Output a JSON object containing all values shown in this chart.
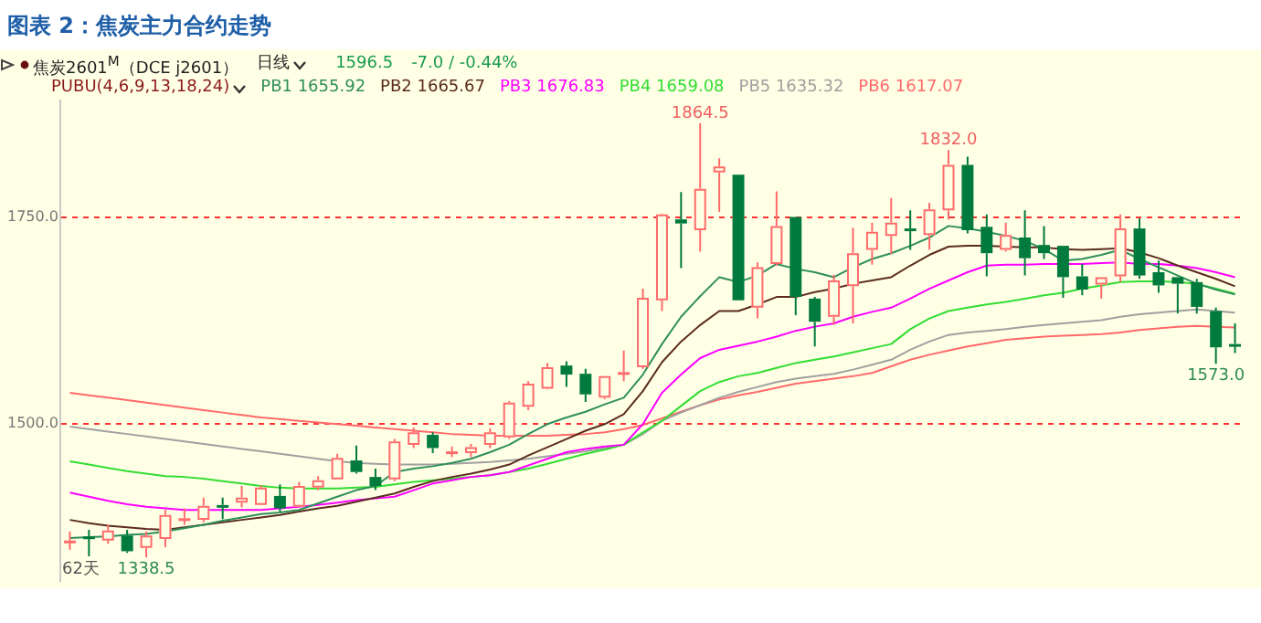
{
  "chart_data": {
    "type": "candlestick",
    "title": "图表 2：焦炭主力合约走势",
    "annotations": [
      "焦炭2601$^{M}$（DCE j2601）",
      "日线",
      "1596.5",
      "-7.0 / -0.44%",
      "PUBU(4,6,9,13,18,24)",
      "62天",
      {
        "text": "1864.5",
        "y": 1864.5
      },
      {
        "text": "1832.0",
        "y": 1832.0
      },
      {
        "text": "1573.0",
        "y": 1573.0
      },
      {
        "text": "1338.5",
        "y": 1338.5
      }
    ],
    "categories": [
      null,
      null,
      null,
      null,
      null,
      null,
      null,
      null,
      null,
      null,
      null,
      null,
      null,
      null,
      null,
      null,
      null,
      null,
      null,
      null,
      null,
      null,
      null,
      null,
      null,
      null,
      null,
      null,
      null,
      null,
      null,
      null,
      null,
      null,
      null,
      null,
      null,
      null,
      null,
      null,
      null,
      null,
      null,
      null,
      null,
      null,
      null,
      null,
      null,
      null,
      null,
      null,
      null,
      null,
      null,
      null,
      null,
      null,
      null,
      null,
      null,
      null
    ],
    "ohlc": [
      [
        1358,
        1370,
        1348,
        1359
      ],
      [
        1364,
        1372,
        1340,
        1363
      ],
      [
        1359,
        1378,
        1355,
        1371
      ],
      [
        1365,
        1372,
        1344,
        1346
      ],
      [
        1350,
        1370,
        1338.5,
        1365
      ],
      [
        1361,
        1396,
        1351,
        1390
      ],
      [
        1385,
        1398,
        1378,
        1386
      ],
      [
        1384,
        1411,
        1381,
        1401
      ],
      [
        1402,
        1411,
        1385,
        1401
      ],
      [
        1405,
        1425,
        1399,
        1411
      ],
      [
        1402,
        1426,
        1402,
        1423
      ],
      [
        1413,
        1427,
        1394,
        1398
      ],
      [
        1400,
        1430,
        1400,
        1425
      ],
      [
        1423,
        1437,
        1420,
        1432
      ],
      [
        1433,
        1464,
        1433,
        1459
      ],
      [
        1456,
        1474,
        1440,
        1442
      ],
      [
        1436,
        1446,
        1420,
        1425
      ],
      [
        1433,
        1482,
        1431,
        1479
      ],
      [
        1475,
        1496,
        1471,
        1490
      ],
      [
        1487,
        1490,
        1465,
        1471
      ],
      [
        1466,
        1473,
        1460,
        1467
      ],
      [
        1465,
        1476,
        1460,
        1472
      ],
      [
        1475,
        1495,
        1471,
        1490
      ],
      [
        1484,
        1528,
        1482,
        1526
      ],
      [
        1521,
        1552,
        1517,
        1549
      ],
      [
        1543,
        1574,
        1542,
        1569
      ],
      [
        1571,
        1576,
        1545,
        1560
      ],
      [
        1561,
        1567,
        1527,
        1536
      ],
      [
        1532,
        1558,
        1530,
        1558
      ],
      [
        1562,
        1589,
        1552,
        1563
      ],
      [
        1569,
        1664,
        1567,
        1653
      ],
      [
        1650,
        1755,
        1637,
        1754
      ],
      [
        1748,
        1781,
        1689,
        1743
      ],
      [
        1735,
        1864.5,
        1709,
        1785
      ],
      [
        1805,
        1822,
        1757,
        1812
      ],
      [
        1802,
        1802,
        1650,
        1650
      ],
      [
        1641,
        1696,
        1628,
        1690
      ],
      [
        1694,
        1782,
        1692,
        1740
      ],
      [
        1751,
        1751,
        1632,
        1654
      ],
      [
        1652,
        1654,
        1594,
        1624
      ],
      [
        1630,
        1681,
        1620,
        1674
      ],
      [
        1667,
        1738,
        1622,
        1707
      ],
      [
        1711,
        1744,
        1693,
        1733
      ],
      [
        1728,
        1774,
        1706,
        1744
      ],
      [
        1737,
        1759,
        1711,
        1736
      ],
      [
        1729,
        1768,
        1711,
        1760
      ],
      [
        1759,
        1832.0,
        1748,
        1814
      ],
      [
        1814,
        1824,
        1731,
        1735
      ],
      [
        1739,
        1754,
        1679,
        1707
      ],
      [
        1711,
        1744,
        1709,
        1729
      ],
      [
        1726,
        1759,
        1680,
        1701
      ],
      [
        1717,
        1740,
        1700,
        1707
      ],
      [
        1716,
        1716,
        1653,
        1678
      ],
      [
        1679,
        1694,
        1656,
        1663
      ],
      [
        1669,
        1678,
        1652,
        1678
      ],
      [
        1679,
        1754,
        1672,
        1737
      ],
      [
        1737,
        1749,
        1676,
        1680
      ],
      [
        1684,
        1698,
        1659,
        1668
      ],
      [
        1678,
        1678,
        1634,
        1670
      ],
      [
        1672,
        1676,
        1634,
        1642
      ],
      [
        1637,
        1641,
        1573,
        1593
      ],
      [
        1597,
        1622,
        1586,
        1596.5
      ]
    ],
    "series": [
      {
        "name": "PB1 1655.92",
        "type": "line",
        "color": "#2f8f5b",
        "values": [
          1362,
          1363,
          1364,
          1366,
          1367,
          1370,
          1374,
          1378,
          1383,
          1387,
          1391,
          1393,
          1396,
          1404,
          1412,
          1420,
          1425,
          1442,
          1446,
          1449,
          1453,
          1458,
          1466,
          1475,
          1488,
          1500,
          1508,
          1515,
          1524,
          1532,
          1560,
          1597,
          1630,
          1655,
          1678,
          1672,
          1680,
          1694,
          1688,
          1684,
          1678,
          1690,
          1700,
          1707,
          1716,
          1726,
          1740,
          1737,
          1733,
          1728,
          1722,
          1712,
          1698,
          1700,
          1705,
          1711,
          1700,
          1690,
          1680,
          1670,
          1663,
          1657
        ]
      },
      {
        "name": "PB2 1665.67",
        "type": "line",
        "color": "#5b2b1e",
        "values": [
          1384,
          1380,
          1377,
          1375,
          1373,
          1372,
          1375,
          1378,
          1381,
          1384,
          1387,
          1390,
          1394,
          1398,
          1401,
          1406,
          1411,
          1416,
          1424,
          1431,
          1436,
          1440,
          1445,
          1451,
          1462,
          1472,
          1482,
          1492,
          1500,
          1512,
          1540,
          1575,
          1600,
          1620,
          1637,
          1637,
          1645,
          1654,
          1654,
          1660,
          1664,
          1670,
          1674,
          1678,
          1692,
          1705,
          1715,
          1716,
          1716,
          1715,
          1714,
          1714,
          1712,
          1711,
          1712,
          1713,
          1708,
          1701,
          1692,
          1684,
          1676,
          1667
        ]
      },
      {
        "name": "PB3 1676.83",
        "type": "line",
        "color": "#ff00ff",
        "values": [
          1417,
          1412,
          1407,
          1403,
          1400,
          1398,
          1396,
          1396,
          1396,
          1396,
          1396,
          1398,
          1400,
          1402,
          1405,
          1408,
          1410,
          1412,
          1420,
          1428,
          1432,
          1436,
          1438,
          1442,
          1450,
          1458,
          1466,
          1470,
          1473,
          1475,
          1500,
          1538,
          1560,
          1580,
          1590,
          1595,
          1600,
          1606,
          1613,
          1618,
          1622,
          1630,
          1636,
          1641,
          1652,
          1664,
          1674,
          1684,
          1692,
          1693,
          1693,
          1694,
          1694,
          1694,
          1695,
          1696,
          1694,
          1694,
          1692,
          1689,
          1684,
          1678
        ]
      },
      {
        "name": "PB4 1659.08",
        "type": "line",
        "color": "#33dd33",
        "values": [
          1455,
          1451,
          1447,
          1443,
          1440,
          1437,
          1436,
          1434,
          1431,
          1428,
          1425,
          1423,
          1422,
          1422,
          1422,
          1423,
          1424,
          1427,
          1430,
          1432,
          1434,
          1436,
          1438,
          1442,
          1446,
          1452,
          1458,
          1464,
          1469,
          1475,
          1490,
          1504,
          1522,
          1540,
          1551,
          1558,
          1562,
          1568,
          1574,
          1578,
          1582,
          1587,
          1592,
          1597,
          1615,
          1628,
          1637,
          1641,
          1645,
          1648,
          1652,
          1656,
          1659,
          1664,
          1668,
          1672,
          1673,
          1673,
          1672,
          1670,
          1664,
          1658
        ]
      },
      {
        "name": "PB5 1635.32",
        "type": "line",
        "color": "#a0a0a0",
        "values": [
          1497,
          1494,
          1491,
          1488,
          1485,
          1482,
          1479,
          1476,
          1473,
          1470,
          1467,
          1464,
          1461,
          1458,
          1455,
          1453,
          1452,
          1451,
          1451,
          1451,
          1452,
          1453,
          1454,
          1456,
          1458,
          1461,
          1464,
          1467,
          1471,
          1475,
          1488,
          1504,
          1514,
          1523,
          1532,
          1539,
          1545,
          1551,
          1555,
          1558,
          1561,
          1566,
          1572,
          1578,
          1590,
          1600,
          1608,
          1611,
          1613,
          1615,
          1618,
          1620,
          1622,
          1624,
          1626,
          1630,
          1633,
          1635,
          1637,
          1639,
          1637,
          1635
        ]
      },
      {
        "name": "PB6 1617.07",
        "type": "line",
        "color": "#ff6a6a",
        "values": [
          1538,
          1535,
          1532,
          1529,
          1526,
          1523,
          1520,
          1517,
          1514,
          1511,
          1508,
          1506,
          1504,
          1502,
          1500,
          1498,
          1496,
          1494,
          1492,
          1490,
          1488,
          1487,
          1486,
          1486,
          1486,
          1486,
          1487,
          1488,
          1490,
          1494,
          1499,
          1507,
          1515,
          1523,
          1530,
          1535,
          1539,
          1544,
          1549,
          1552,
          1555,
          1558,
          1562,
          1570,
          1578,
          1584,
          1589,
          1594,
          1598,
          1602,
          1604,
          1606,
          1607,
          1608,
          1609,
          1611,
          1614,
          1616,
          1618,
          1619,
          1618,
          1617
        ]
      }
    ],
    "ylim": [
      1310,
      1892
    ],
    "yticks": [
      {
        "value": 1500,
        "label": "1500.0"
      },
      {
        "value": 1750,
        "label": "1750.0"
      }
    ],
    "grid": "y",
    "legend": "top left",
    "marker": "none",
    "line_style": "solid"
  }
}
